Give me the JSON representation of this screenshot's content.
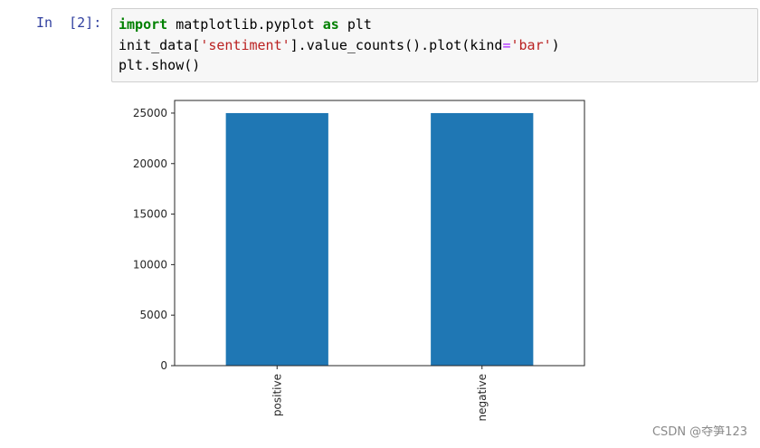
{
  "cell": {
    "prompt": "In  [2]:",
    "lines": [
      [
        {
          "t": "import",
          "c": "kw"
        },
        {
          "t": " matplotlib.pyplot ",
          "c": ""
        },
        {
          "t": "as",
          "c": "kw"
        },
        {
          "t": " plt",
          "c": ""
        }
      ],
      [
        {
          "t": "init_data[",
          "c": ""
        },
        {
          "t": "'sentiment'",
          "c": "str"
        },
        {
          "t": "].value_counts().plot(kind",
          "c": ""
        },
        {
          "t": "=",
          "c": "op"
        },
        {
          "t": "'bar'",
          "c": "str"
        },
        {
          "t": ")",
          "c": ""
        }
      ],
      [
        {
          "t": "plt.show()",
          "c": ""
        }
      ]
    ]
  },
  "chart_data": {
    "type": "bar",
    "categories": [
      "positive",
      "negative"
    ],
    "values": [
      25000,
      25000
    ],
    "yticks": [
      0,
      5000,
      10000,
      15000,
      20000,
      25000
    ],
    "ylim": [
      0,
      26250
    ],
    "bar_color": "#1f77b4",
    "grid": false
  },
  "watermark": "CSDN @夺笋123"
}
